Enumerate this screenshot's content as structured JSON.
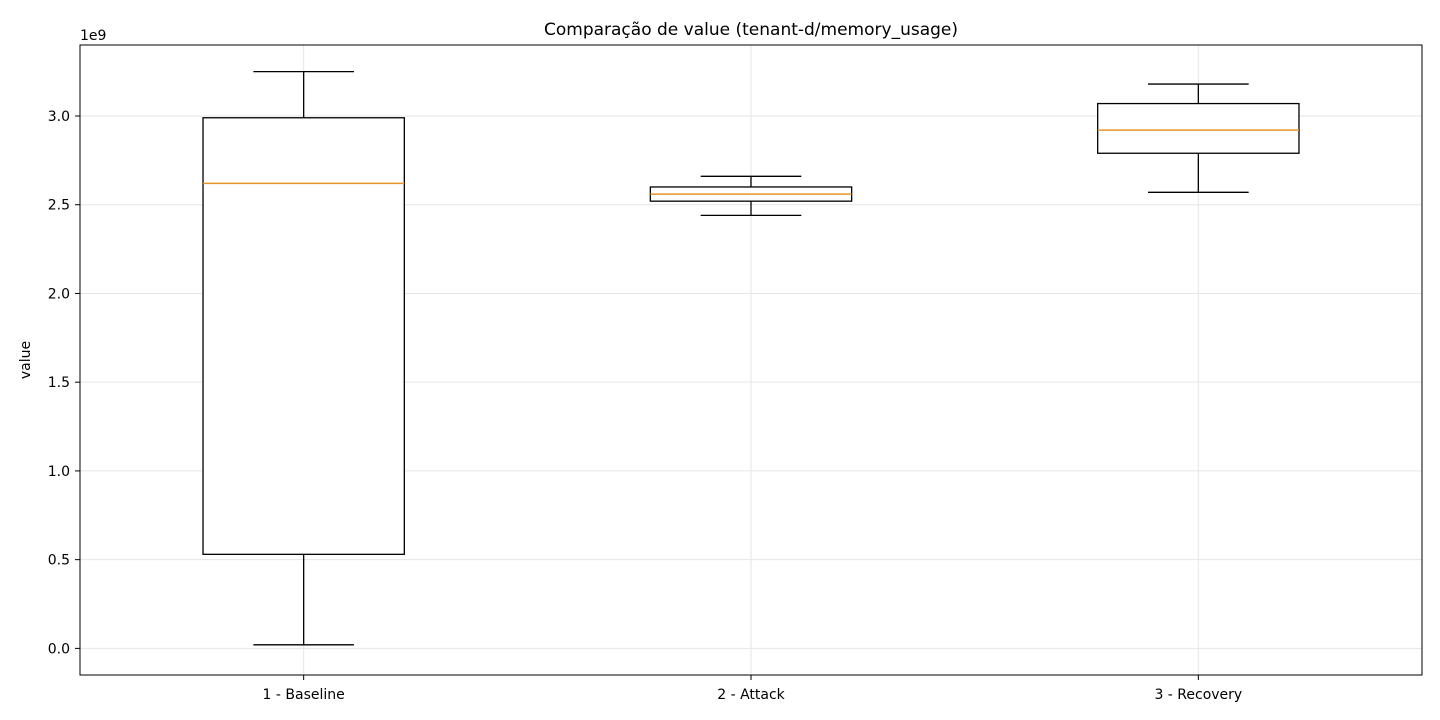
{
  "chart_data": {
    "type": "box",
    "title": "Comparação de value (tenant-d/memory_usage)",
    "xlabel": "",
    "ylabel": "value",
    "y_multiplier_label": "1e9",
    "ylim": [
      -0.15,
      3.4
    ],
    "y_ticks": [
      0.0,
      0.5,
      1.0,
      1.5,
      2.0,
      2.5,
      3.0
    ],
    "y_tick_labels": [
      "0.0",
      "0.5",
      "1.0",
      "1.5",
      "2.0",
      "2.5",
      "3.0"
    ],
    "categories": [
      "1 - Baseline",
      "2 - Attack",
      "3 - Recovery"
    ],
    "boxes": [
      {
        "whisker_low": 0.02,
        "q1": 0.53,
        "median": 2.62,
        "q3": 2.99,
        "whisker_high": 3.25
      },
      {
        "whisker_low": 2.44,
        "q1": 2.52,
        "median": 2.56,
        "q3": 2.6,
        "whisker_high": 2.66
      },
      {
        "whisker_low": 2.57,
        "q1": 2.79,
        "median": 2.92,
        "q3": 3.07,
        "whisker_high": 3.18
      }
    ],
    "grid": true,
    "colors": {
      "box": "#000000",
      "median": "#e69529",
      "grid": "#e6e6e6"
    }
  }
}
